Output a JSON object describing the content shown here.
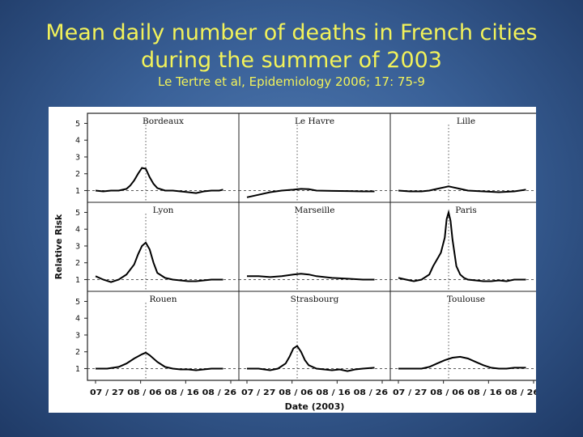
{
  "slide": {
    "title_line1": "Mean daily number of deaths in French cities",
    "title_line2": "during the summer of 2003",
    "citation": "Le Tertre et al, Epidemiology 2006; 17: 75-9"
  },
  "colors": {
    "title": "#f2f25a",
    "background": "#3a6198",
    "figure_background": "#ffffff",
    "curve": "#000000"
  },
  "chart_data": {
    "type": "line",
    "layout": "3x3 small multiples",
    "xlabel": "Date (2003)",
    "ylabel": "Relative Risk",
    "x_ticks": [
      "07 / 27",
      "08 / 06",
      "08 / 16",
      "08 / 26"
    ],
    "y_ticks": [
      1,
      2,
      3,
      4,
      5
    ],
    "ylim": [
      0.3,
      5.6
    ],
    "xlim": [
      0,
      35
    ],
    "reference_line_y": 1,
    "event_x": 13,
    "grid": false,
    "panels": [
      {
        "name": "Bordeaux",
        "x": [
          0,
          2,
          4,
          6,
          8,
          9,
          10,
          11,
          12,
          13,
          14,
          15,
          16,
          18,
          20,
          22,
          24,
          26,
          28,
          30,
          32,
          33
        ],
        "y": [
          1.0,
          0.95,
          1.0,
          1.0,
          1.1,
          1.3,
          1.6,
          2.0,
          2.35,
          2.3,
          1.8,
          1.4,
          1.15,
          1.0,
          1.0,
          0.95,
          0.9,
          0.85,
          0.95,
          1.0,
          1.0,
          1.05
        ]
      },
      {
        "name": "Le Havre",
        "x": [
          0,
          3,
          6,
          9,
          12,
          14,
          16,
          18,
          22,
          26,
          30,
          33
        ],
        "y": [
          0.6,
          0.75,
          0.9,
          1.0,
          1.05,
          1.1,
          1.08,
          1.0,
          0.98,
          0.97,
          0.95,
          0.95
        ]
      },
      {
        "name": "Lille",
        "x": [
          0,
          3,
          6,
          8,
          10,
          12,
          13,
          14,
          16,
          18,
          22,
          26,
          30,
          33
        ],
        "y": [
          1.0,
          0.95,
          0.95,
          1.0,
          1.1,
          1.2,
          1.25,
          1.2,
          1.1,
          1.0,
          0.95,
          0.9,
          0.95,
          1.05
        ]
      },
      {
        "name": "Lyon",
        "x": [
          0,
          2,
          4,
          6,
          8,
          10,
          11,
          12,
          13,
          14,
          15,
          16,
          18,
          20,
          22,
          24,
          26,
          28,
          30,
          33
        ],
        "y": [
          1.2,
          1.0,
          0.85,
          1.0,
          1.3,
          1.9,
          2.5,
          3.0,
          3.2,
          2.8,
          2.0,
          1.4,
          1.1,
          1.0,
          0.95,
          0.9,
          0.9,
          0.95,
          1.0,
          1.0
        ]
      },
      {
        "name": "Marseille",
        "x": [
          0,
          3,
          6,
          9,
          12,
          14,
          16,
          18,
          22,
          26,
          30,
          33
        ],
        "y": [
          1.2,
          1.2,
          1.15,
          1.2,
          1.3,
          1.35,
          1.3,
          1.2,
          1.1,
          1.05,
          1.0,
          1.0
        ]
      },
      {
        "name": "Paris",
        "x": [
          0,
          2,
          4,
          6,
          8,
          9,
          10,
          11,
          12,
          12.5,
          13,
          13.5,
          14,
          15,
          16,
          17,
          18,
          20,
          22,
          24,
          26,
          28,
          30,
          33
        ],
        "y": [
          1.1,
          1.0,
          0.9,
          1.0,
          1.3,
          1.8,
          2.2,
          2.6,
          3.5,
          4.6,
          5.0,
          4.5,
          3.4,
          1.8,
          1.3,
          1.1,
          1.0,
          0.95,
          0.9,
          0.9,
          0.95,
          0.9,
          1.0,
          1.0
        ]
      },
      {
        "name": "Rouen",
        "x": [
          0,
          3,
          6,
          8,
          10,
          12,
          13,
          14,
          16,
          18,
          20,
          22,
          24,
          26,
          28,
          30,
          33
        ],
        "y": [
          1.0,
          1.0,
          1.1,
          1.3,
          1.6,
          1.85,
          1.95,
          1.8,
          1.4,
          1.1,
          1.0,
          0.95,
          0.95,
          0.9,
          0.95,
          1.0,
          1.0
        ]
      },
      {
        "name": "Strasbourg",
        "x": [
          0,
          3,
          6,
          8,
          10,
          11,
          12,
          13,
          14,
          15,
          16,
          18,
          20,
          22,
          24,
          26,
          28,
          30,
          33
        ],
        "y": [
          1.0,
          1.0,
          0.9,
          1.0,
          1.3,
          1.7,
          2.2,
          2.35,
          2.0,
          1.5,
          1.2,
          1.0,
          0.95,
          0.9,
          0.95,
          0.85,
          0.95,
          1.0,
          1.05
        ]
      },
      {
        "name": "Toulouse",
        "x": [
          0,
          3,
          6,
          8,
          10,
          12,
          14,
          16,
          18,
          20,
          22,
          24,
          26,
          28,
          30,
          33
        ],
        "y": [
          1.0,
          1.0,
          1.0,
          1.1,
          1.3,
          1.5,
          1.65,
          1.7,
          1.6,
          1.4,
          1.2,
          1.05,
          1.0,
          1.0,
          1.05,
          1.05
        ]
      }
    ]
  }
}
